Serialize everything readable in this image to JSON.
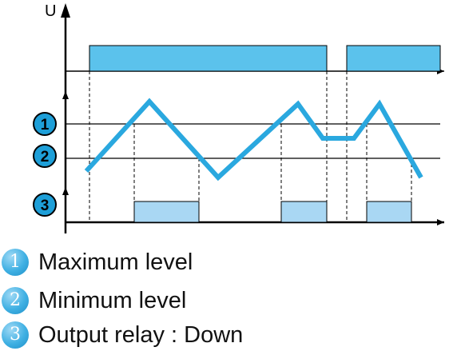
{
  "diagram": {
    "y_axis_label": "U",
    "markers": [
      "1",
      "2",
      "3"
    ],
    "colors": {
      "supply_bar": "#5bc2ec",
      "relay_bar": "#a9d7f3",
      "signal_line": "#2aa8df",
      "marker_fill": "#1e9fd8",
      "line": "#000000"
    }
  },
  "legend": [
    {
      "number": "1",
      "label": "Maximum level"
    },
    {
      "number": "2",
      "label": "Minimum level"
    },
    {
      "number": "3",
      "label": "Output relay : Down"
    }
  ]
}
